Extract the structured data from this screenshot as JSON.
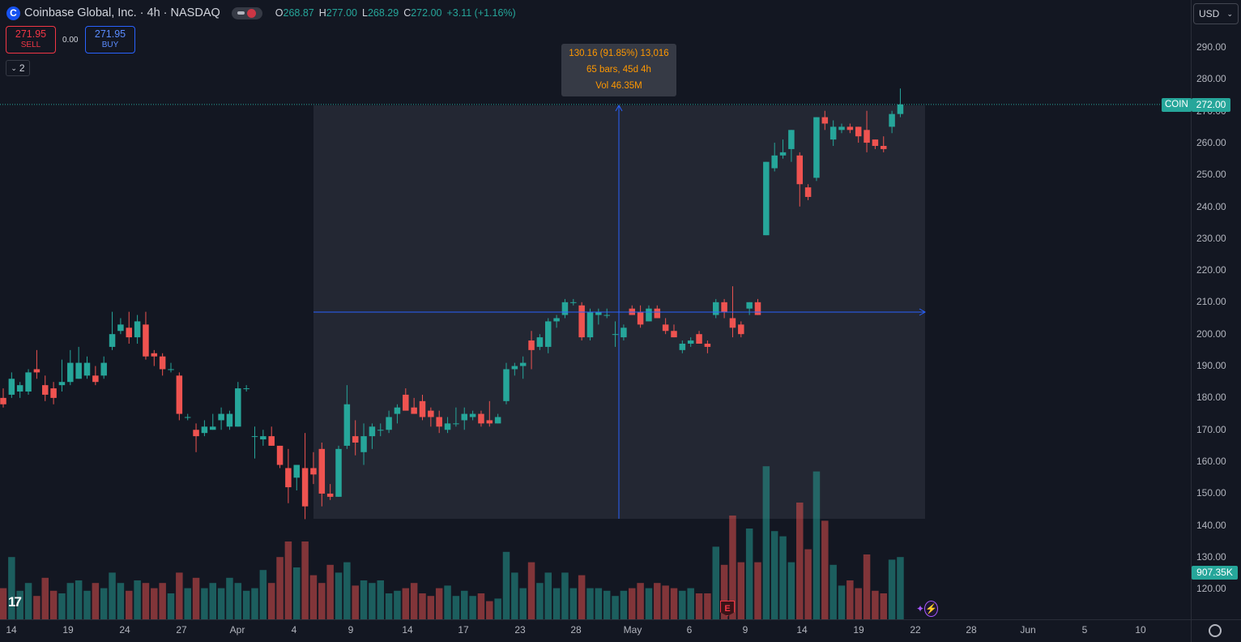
{
  "symbol": {
    "logo_letter": "C",
    "title": "Coinbase Global, Inc. · 4h · NASDAQ",
    "ohlc": [
      {
        "key": "O",
        "value": "268.87"
      },
      {
        "key": "H",
        "value": "277.00"
      },
      {
        "key": "L",
        "value": "268.29"
      },
      {
        "key": "C",
        "value": "272.00"
      },
      {
        "key": "",
        "value": "+3.11 (+1.16%)"
      }
    ]
  },
  "trade": {
    "sell_price": "271.95",
    "sell_label": "SELL",
    "spread": "0.00",
    "buy_price": "271.95",
    "buy_label": "BUY"
  },
  "indicators_toggle": {
    "count": "2"
  },
  "measure_tooltip": {
    "line1": "130.16 (91.85%) 13,016",
    "line2": "65 bars, 45d 4h",
    "line3": "Vol 46.35M"
  },
  "currency": "USD",
  "price_axis": {
    "labels": [
      "290.00",
      "280.00",
      "270.00",
      "260.00",
      "250.00",
      "240.00",
      "230.00",
      "220.00",
      "210.00",
      "200.00",
      "190.00",
      "180.00",
      "170.00",
      "160.00",
      "150.00",
      "140.00",
      "130.00",
      "120.00"
    ],
    "current_ticker": "COIN",
    "current_price": "272.00",
    "current_volume": "907.35K"
  },
  "time_axis": {
    "labels": [
      "14",
      "19",
      "24",
      "27",
      "Apr",
      "4",
      "9",
      "14",
      "17",
      "23",
      "28",
      "May",
      "6",
      "9",
      "14",
      "19",
      "22",
      "28",
      "Jun",
      "5",
      "10"
    ]
  },
  "earnings_badge": "E",
  "tv_logo": "17",
  "colors": {
    "up": "#26a69a",
    "down": "#ef5350",
    "measure": "#2962ff",
    "background": "#131722"
  },
  "chart_data": {
    "type": "candlestick",
    "ylim": [
      112,
      295
    ],
    "candles": [
      {
        "o": 180,
        "h": 183,
        "l": 177,
        "c": 178,
        "v": 12
      },
      {
        "o": 181,
        "h": 188,
        "l": 180,
        "c": 186,
        "v": 24
      },
      {
        "o": 182,
        "h": 185,
        "l": 180,
        "c": 184,
        "v": 11
      },
      {
        "o": 182,
        "h": 189,
        "l": 181,
        "c": 188,
        "v": 14
      },
      {
        "o": 189,
        "h": 195,
        "l": 186,
        "c": 188,
        "v": 9
      },
      {
        "o": 184,
        "h": 187,
        "l": 179,
        "c": 181,
        "v": 16
      },
      {
        "o": 183,
        "h": 185,
        "l": 178,
        "c": 180,
        "v": 11
      },
      {
        "o": 184,
        "h": 192,
        "l": 182,
        "c": 185,
        "v": 10
      },
      {
        "o": 185,
        "h": 195,
        "l": 184,
        "c": 191,
        "v": 14
      },
      {
        "o": 186,
        "h": 196,
        "l": 186,
        "c": 191,
        "v": 15
      },
      {
        "o": 187,
        "h": 193,
        "l": 186,
        "c": 191,
        "v": 11
      },
      {
        "o": 187,
        "h": 190,
        "l": 184,
        "c": 185,
        "v": 14
      },
      {
        "o": 187,
        "h": 193,
        "l": 186,
        "c": 191,
        "v": 12
      },
      {
        "o": 196,
        "h": 207,
        "l": 195,
        "c": 200,
        "v": 18
      },
      {
        "o": 201,
        "h": 205,
        "l": 200,
        "c": 203,
        "v": 14
      },
      {
        "o": 202,
        "h": 207,
        "l": 197,
        "c": 199,
        "v": 11
      },
      {
        "o": 199,
        "h": 206,
        "l": 197,
        "c": 204,
        "v": 15
      },
      {
        "o": 203,
        "h": 207,
        "l": 192,
        "c": 193,
        "v": 14
      },
      {
        "o": 194,
        "h": 195,
        "l": 190,
        "c": 193,
        "v": 12
      },
      {
        "o": 193,
        "h": 194,
        "l": 187,
        "c": 189,
        "v": 14
      },
      {
        "o": 189,
        "h": 191,
        "l": 188,
        "c": 189,
        "v": 10
      },
      {
        "o": 187,
        "h": 188,
        "l": 173,
        "c": 175,
        "v": 18
      },
      {
        "o": 174,
        "h": 175,
        "l": 173,
        "c": 174,
        "v": 12
      },
      {
        "o": 170,
        "h": 172,
        "l": 163,
        "c": 168,
        "v": 16
      },
      {
        "o": 169,
        "h": 173,
        "l": 168,
        "c": 171,
        "v": 12
      },
      {
        "o": 170,
        "h": 175,
        "l": 170,
        "c": 171,
        "v": 14
      },
      {
        "o": 173,
        "h": 177,
        "l": 170,
        "c": 175,
        "v": 12
      },
      {
        "o": 171,
        "h": 176,
        "l": 170,
        "c": 175,
        "v": 16
      },
      {
        "o": 171,
        "h": 185,
        "l": 171,
        "c": 183,
        "v": 14
      },
      {
        "o": 183,
        "h": 184,
        "l": 182,
        "c": 183,
        "v": 11
      },
      {
        "o": 168,
        "h": 171,
        "l": 161,
        "c": 168,
        "v": 12
      },
      {
        "o": 167,
        "h": 170,
        "l": 165,
        "c": 168,
        "v": 19
      },
      {
        "o": 168,
        "h": 171,
        "l": 165,
        "c": 165,
        "v": 14
      },
      {
        "o": 165,
        "h": 165,
        "l": 158,
        "c": 159,
        "v": 24
      },
      {
        "o": 158,
        "h": 164,
        "l": 147,
        "c": 152,
        "v": 30
      },
      {
        "o": 155,
        "h": 159,
        "l": 151,
        "c": 159,
        "v": 20
      },
      {
        "o": 158,
        "h": 169,
        "l": 142,
        "c": 146,
        "v": 30
      },
      {
        "o": 158,
        "h": 163,
        "l": 153,
        "c": 156,
        "v": 17
      },
      {
        "o": 164,
        "h": 166,
        "l": 146,
        "c": 150,
        "v": 14
      },
      {
        "o": 150,
        "h": 153,
        "l": 148,
        "c": 149,
        "v": 21
      },
      {
        "o": 149,
        "h": 165,
        "l": 149,
        "c": 164,
        "v": 18
      },
      {
        "o": 165,
        "h": 184,
        "l": 164,
        "c": 178,
        "v": 22
      },
      {
        "o": 168,
        "h": 173,
        "l": 162,
        "c": 166,
        "v": 13
      },
      {
        "o": 163,
        "h": 172,
        "l": 159,
        "c": 168,
        "v": 15
      },
      {
        "o": 168,
        "h": 172,
        "l": 164,
        "c": 171,
        "v": 14
      },
      {
        "o": 170,
        "h": 172,
        "l": 168,
        "c": 170,
        "v": 15
      },
      {
        "o": 170,
        "h": 176,
        "l": 169,
        "c": 174,
        "v": 10
      },
      {
        "o": 175,
        "h": 178,
        "l": 172,
        "c": 177,
        "v": 11
      },
      {
        "o": 181,
        "h": 183,
        "l": 177,
        "c": 176,
        "v": 12
      },
      {
        "o": 177,
        "h": 180,
        "l": 175,
        "c": 175,
        "v": 14
      },
      {
        "o": 179,
        "h": 181,
        "l": 173,
        "c": 174,
        "v": 10
      },
      {
        "o": 176,
        "h": 177,
        "l": 171,
        "c": 174,
        "v": 9
      },
      {
        "o": 174,
        "h": 176,
        "l": 169,
        "c": 171,
        "v": 12
      },
      {
        "o": 170,
        "h": 174,
        "l": 169,
        "c": 172,
        "v": 13
      },
      {
        "o": 172,
        "h": 177,
        "l": 171,
        "c": 172,
        "v": 9
      },
      {
        "o": 173,
        "h": 177,
        "l": 170,
        "c": 175,
        "v": 11
      },
      {
        "o": 174,
        "h": 176,
        "l": 173,
        "c": 175,
        "v": 9
      },
      {
        "o": 175,
        "h": 176,
        "l": 171,
        "c": 172,
        "v": 10
      },
      {
        "o": 173,
        "h": 179,
        "l": 171,
        "c": 172,
        "v": 7
      },
      {
        "o": 172,
        "h": 175,
        "l": 172,
        "c": 174,
        "v": 8
      },
      {
        "o": 179,
        "h": 191,
        "l": 178,
        "c": 189,
        "v": 26
      },
      {
        "o": 189,
        "h": 191,
        "l": 187,
        "c": 190,
        "v": 18
      },
      {
        "o": 190,
        "h": 193,
        "l": 186,
        "c": 191,
        "v": 12
      },
      {
        "o": 198,
        "h": 201,
        "l": 189,
        "c": 195,
        "v": 22
      },
      {
        "o": 196,
        "h": 200,
        "l": 195,
        "c": 199,
        "v": 14
      },
      {
        "o": 196,
        "h": 205,
        "l": 194,
        "c": 204,
        "v": 18
      },
      {
        "o": 204,
        "h": 206,
        "l": 202,
        "c": 205,
        "v": 12
      },
      {
        "o": 206,
        "h": 211,
        "l": 205,
        "c": 210,
        "v": 18
      },
      {
        "o": 210,
        "h": 211,
        "l": 209,
        "c": 210,
        "v": 12
      },
      {
        "o": 209,
        "h": 210,
        "l": 198,
        "c": 199,
        "v": 17
      },
      {
        "o": 199,
        "h": 208,
        "l": 198,
        "c": 207,
        "v": 12
      },
      {
        "o": 206,
        "h": 208,
        "l": 203,
        "c": 207,
        "v": 12
      },
      {
        "o": 206,
        "h": 208,
        "l": 205,
        "c": 206,
        "v": 11
      },
      {
        "o": 200,
        "h": 204,
        "l": 196,
        "c": 200,
        "v": 9
      },
      {
        "o": 199,
        "h": 203,
        "l": 198,
        "c": 202,
        "v": 11
      },
      {
        "o": 208,
        "h": 209,
        "l": 206,
        "c": 206,
        "v": 12
      },
      {
        "o": 207,
        "h": 209,
        "l": 202,
        "c": 203,
        "v": 14
      },
      {
        "o": 204,
        "h": 209,
        "l": 204,
        "c": 208,
        "v": 12
      },
      {
        "o": 208,
        "h": 209,
        "l": 205,
        "c": 205,
        "v": 14
      },
      {
        "o": 203,
        "h": 205,
        "l": 200,
        "c": 201,
        "v": 13
      },
      {
        "o": 201,
        "h": 203,
        "l": 199,
        "c": 199,
        "v": 12
      },
      {
        "o": 195,
        "h": 198,
        "l": 194,
        "c": 197,
        "v": 11
      },
      {
        "o": 197,
        "h": 199,
        "l": 196,
        "c": 198,
        "v": 12
      },
      {
        "o": 200,
        "h": 201,
        "l": 197,
        "c": 197,
        "v": 10
      },
      {
        "o": 197,
        "h": 198,
        "l": 194,
        "c": 196,
        "v": 10
      },
      {
        "o": 206,
        "h": 211,
        "l": 205,
        "c": 210,
        "v": 28
      },
      {
        "o": 210,
        "h": 211,
        "l": 205,
        "c": 207,
        "v": 21
      },
      {
        "o": 205,
        "h": 215,
        "l": 199,
        "c": 202,
        "v": 40
      },
      {
        "o": 203,
        "h": 204,
        "l": 199,
        "c": 200,
        "v": 22
      },
      {
        "o": 208,
        "h": 210,
        "l": 206,
        "c": 210,
        "v": 35
      },
      {
        "o": 210,
        "h": 211,
        "l": 206,
        "c": 206,
        "v": 22
      },
      {
        "o": 231,
        "h": 254,
        "l": 231,
        "c": 254,
        "v": 59
      },
      {
        "o": 252,
        "h": 260,
        "l": 251,
        "c": 256,
        "v": 34
      },
      {
        "o": 256,
        "h": 261,
        "l": 255,
        "c": 257,
        "v": 32
      },
      {
        "o": 258,
        "h": 264,
        "l": 254,
        "c": 264,
        "v": 22
      },
      {
        "o": 256,
        "h": 257,
        "l": 240,
        "c": 247,
        "v": 45
      },
      {
        "o": 246,
        "h": 247,
        "l": 242,
        "c": 243,
        "v": 27
      },
      {
        "o": 249,
        "h": 268,
        "l": 248,
        "c": 268,
        "v": 57
      },
      {
        "o": 268,
        "h": 270,
        "l": 264,
        "c": 266,
        "v": 38
      },
      {
        "o": 261,
        "h": 267,
        "l": 259,
        "c": 265,
        "v": 21
      },
      {
        "o": 264,
        "h": 266,
        "l": 263,
        "c": 265,
        "v": 13
      },
      {
        "o": 265,
        "h": 266,
        "l": 263,
        "c": 264,
        "v": 15
      },
      {
        "o": 265,
        "h": 265,
        "l": 260,
        "c": 262,
        "v": 12
      },
      {
        "o": 264,
        "h": 270,
        "l": 257,
        "c": 260,
        "v": 25
      },
      {
        "o": 261,
        "h": 261,
        "l": 258,
        "c": 259,
        "v": 11
      },
      {
        "o": 259,
        "h": 262,
        "l": 257,
        "c": 258,
        "v": 10
      },
      {
        "o": 265,
        "h": 270,
        "l": 263,
        "c": 269,
        "v": 23
      },
      {
        "o": 269,
        "h": 277,
        "l": 268,
        "c": 272,
        "v": 24
      }
    ]
  }
}
